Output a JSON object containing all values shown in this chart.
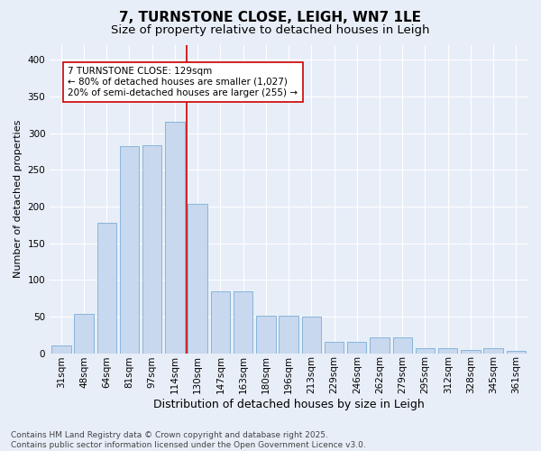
{
  "title": "7, TURNSTONE CLOSE, LEIGH, WN7 1LE",
  "subtitle": "Size of property relative to detached houses in Leigh",
  "xlabel": "Distribution of detached houses by size in Leigh",
  "ylabel": "Number of detached properties",
  "categories": [
    "31sqm",
    "48sqm",
    "64sqm",
    "81sqm",
    "97sqm",
    "114sqm",
    "130sqm",
    "147sqm",
    "163sqm",
    "180sqm",
    "196sqm",
    "213sqm",
    "229sqm",
    "246sqm",
    "262sqm",
    "279sqm",
    "295sqm",
    "312sqm",
    "328sqm",
    "345sqm",
    "361sqm"
  ],
  "bar_values": [
    11,
    54,
    178,
    282,
    283,
    315,
    203,
    84,
    84,
    51,
    51,
    50,
    15,
    15,
    22,
    22,
    7,
    7,
    4,
    7,
    3
  ],
  "bar_color": "#c8d8ee",
  "bar_edge_color": "#7aaed6",
  "vline_color": "#cc0000",
  "annotation_text": "7 TURNSTONE CLOSE: 129sqm\n← 80% of detached houses are smaller (1,027)\n20% of semi-detached houses are larger (255) →",
  "annotation_box_color": "#ffffff",
  "annotation_box_edge": "#cc0000",
  "ylim": [
    0,
    420
  ],
  "yticks": [
    0,
    50,
    100,
    150,
    200,
    250,
    300,
    350,
    400
  ],
  "footer": "Contains HM Land Registry data © Crown copyright and database right 2025.\nContains public sector information licensed under the Open Government Licence v3.0.",
  "bg_color": "#e8eef8",
  "plot_bg_color": "#e8eef8",
  "grid_color": "#ffffff",
  "title_fontsize": 11,
  "subtitle_fontsize": 9.5,
  "ylabel_fontsize": 8,
  "xlabel_fontsize": 9,
  "tick_fontsize": 7.5,
  "annotation_fontsize": 7.5,
  "footer_fontsize": 6.5
}
